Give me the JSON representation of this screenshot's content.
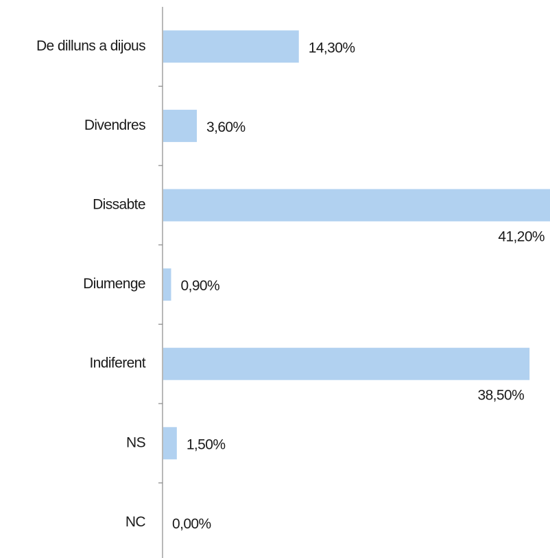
{
  "chart_data": {
    "type": "barh",
    "categories": [
      "De dilluns a dijous",
      "Divendres",
      "Dissabte",
      "Diumenge",
      "Indiferent",
      "NS",
      "NC"
    ],
    "values": [
      14.3,
      3.6,
      41.2,
      0.9,
      38.5,
      1.5,
      0
    ],
    "value_labels": [
      "14,30%",
      "3,60%",
      "41,20%",
      "0,90%",
      "38,50%",
      "1,50%",
      "0,00%"
    ],
    "color": "#b1d1f0"
  }
}
